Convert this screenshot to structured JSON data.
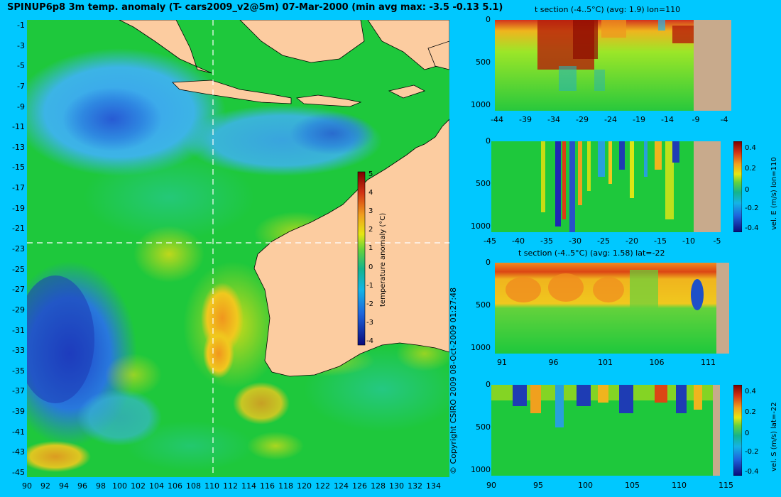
{
  "title": "SPINUP6p8 3m temp. anomaly (T- cars2009_v2@5m) 07-Mar-2000 (min avg max: -3.5 -0.13 5.1)",
  "copyright": "© Copyright CSIRO 2009   08-Oct-2009 01:27:48",
  "map": {
    "lon_ticks": [
      "90",
      "92",
      "94",
      "96",
      "98",
      "100",
      "102",
      "104",
      "106",
      "108",
      "110",
      "112",
      "114",
      "116",
      "118",
      "120",
      "122",
      "124",
      "126",
      "128",
      "130",
      "132",
      "134"
    ],
    "lat_ticks": [
      "-1",
      "-3",
      "-5",
      "-7",
      "-9",
      "-11",
      "-13",
      "-15",
      "-17",
      "-19",
      "-21",
      "-23",
      "-25",
      "-27",
      "-29",
      "-31",
      "-33",
      "-35",
      "-37",
      "-39",
      "-41",
      "-43",
      "-45"
    ],
    "colorbar": {
      "label": "temperature anomaly (°C)",
      "ticks": [
        "5",
        "4",
        "3",
        "2",
        "1",
        "0",
        "-1",
        "-2",
        "-3",
        "-4"
      ]
    },
    "crosshair": {
      "lon": 110,
      "lat": -22
    }
  },
  "panels": [
    {
      "id": "p1",
      "title": "t section (-4..5°C) (avg: 1.9) lon=110",
      "y_ticks": [
        "0",
        "500",
        "1000"
      ],
      "x_ticks": [
        "-44",
        "-39",
        "-34",
        "-29",
        "-24",
        "-19",
        "-14",
        "-9",
        "-4"
      ],
      "colorbar": null
    },
    {
      "id": "p2",
      "title": "",
      "y_ticks": [
        "0",
        "500",
        "1000"
      ],
      "x_ticks": [
        "-45",
        "-40",
        "-35",
        "-30",
        "-25",
        "-20",
        "-15",
        "-10",
        "-5"
      ],
      "colorbar": {
        "label": "vel. E (m/s) lon=110",
        "ticks": [
          "0.4",
          "0.2",
          "0",
          "-0.2",
          "-0.4"
        ]
      }
    },
    {
      "id": "p3",
      "title": "t section (-4..5°C) (avg: 1.58) lat=-22",
      "y_ticks": [
        "0",
        "500",
        "1000"
      ],
      "x_ticks": [
        "91",
        "96",
        "101",
        "106",
        "111"
      ],
      "colorbar": null
    },
    {
      "id": "p4",
      "title": "",
      "y_ticks": [
        "0",
        "500",
        "1000"
      ],
      "x_ticks": [
        "90",
        "95",
        "100",
        "105",
        "110",
        "115"
      ],
      "colorbar": {
        "label": "vel. S (m/s) lat=-22",
        "ticks": [
          "0.4",
          "0.2",
          "0",
          "-0.2",
          "-0.4"
        ]
      }
    }
  ],
  "colors": {
    "background": "#00c8ff",
    "land": "#fccca0",
    "ocean_mid": "#1ec83c",
    "section_land": "#c8aa8c"
  },
  "chart_data": [
    {
      "type": "heatmap",
      "title": "SPINUP6p8 3m temp. anomaly (T- cars2009_v2@5m) 07-Mar-2000 (min avg max: -3.5 -0.13 5.1)",
      "xlabel": "",
      "ylabel": "",
      "xlim": [
        90,
        135
      ],
      "ylim": [
        -45,
        0
      ],
      "colorbar_label": "temperature anomaly (°C)",
      "zlim": [
        -4,
        5
      ],
      "stats": {
        "min": -3.5,
        "avg": -0.13,
        "max": 5.1
      }
    },
    {
      "type": "heatmap",
      "title": "t section (-4..5°C) (avg: 1.9) lon=110",
      "xlim": [
        -45,
        -2
      ],
      "ylim": [
        1050,
        0
      ],
      "zlim": [
        -4,
        5
      ],
      "avg": 1.9
    },
    {
      "type": "heatmap",
      "title": "",
      "colorbar_label": "vel. E (m/s) lon=110",
      "xlim": [
        -45,
        -2
      ],
      "ylim": [
        1050,
        0
      ],
      "zlim": [
        -0.45,
        0.45
      ]
    },
    {
      "type": "heatmap",
      "title": "t section (-4..5°C) (avg: 1.58) lat=-22",
      "xlim": [
        89.5,
        115
      ],
      "ylim": [
        1050,
        0
      ],
      "zlim": [
        -4,
        5
      ],
      "avg": 1.58
    },
    {
      "type": "heatmap",
      "title": "",
      "colorbar_label": "vel. S (m/s) lat=-22",
      "xlim": [
        90,
        115
      ],
      "ylim": [
        1050,
        0
      ],
      "zlim": [
        -0.45,
        0.45
      ]
    }
  ]
}
